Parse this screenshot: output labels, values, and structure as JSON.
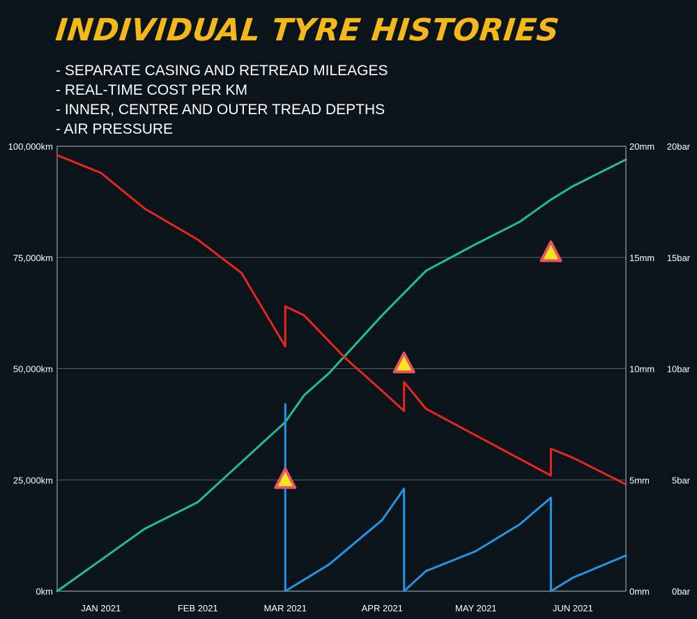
{
  "title": "INDIVIDUAL TYRE HISTORIES",
  "features": [
    "- SEPARATE CASING AND RETREAD MILEAGES",
    "- REAL-TIME COST PER KM",
    "- INNER, CENTRE AND OUTER TREAD DEPTHS",
    "- AIR PRESSURE"
  ],
  "colors": {
    "background": "#0b141b",
    "title": "#f5b81b",
    "casing_mileage": "#1fc08e",
    "retread_mileage": "#2196e6",
    "tread_depth": "#e8261c",
    "warning_fill": "#f7e619",
    "warning_stroke": "#e8536a"
  },
  "chart_data": {
    "type": "line",
    "x_ticks": [
      "JAN 2021",
      "FEB 2021",
      "MAR 2021",
      "APR 2021",
      "MAY 2021",
      "JUN 2021"
    ],
    "x_range": [
      "2020-12-18",
      "2021-06-18"
    ],
    "y_left": {
      "ticks": [
        "0km",
        "25,000km",
        "50,000km",
        "75,000km",
        "100,000km"
      ],
      "range": [
        0,
        100000
      ],
      "unit": "km"
    },
    "y_right_depth": {
      "ticks": [
        "0mm",
        "5mm",
        "10mm",
        "15mm",
        "20mm"
      ],
      "range": [
        0,
        20
      ],
      "unit": "mm"
    },
    "y_right_pressure": {
      "ticks": [
        "0bar",
        "5bar",
        "10bar",
        "15bar",
        "20bar"
      ],
      "range": [
        0,
        20
      ],
      "unit": "bar"
    },
    "grid": true,
    "series": [
      {
        "key": "casing_mileage",
        "axis": "left",
        "x": [
          "2020-12-18",
          "2021-01-01",
          "2021-01-15",
          "2021-02-01",
          "2021-02-15",
          "2021-03-01",
          "2021-03-07",
          "2021-03-15",
          "2021-04-01",
          "2021-04-15",
          "2021-05-01",
          "2021-05-15",
          "2021-05-25",
          "2021-06-01",
          "2021-06-18"
        ],
        "values": [
          0,
          7000,
          14000,
          20000,
          29000,
          38000,
          44000,
          49000,
          62000,
          72000,
          78000,
          83000,
          88000,
          91000,
          97000
        ]
      },
      {
        "key": "retread_mileage",
        "axis": "left",
        "x": [
          "2021-03-01",
          "2021-03-01",
          "2021-03-15",
          "2021-04-01",
          "2021-04-08",
          "2021-04-08",
          "2021-04-15",
          "2021-05-01",
          "2021-05-15",
          "2021-05-25",
          "2021-05-25",
          "2021-06-01",
          "2021-06-18"
        ],
        "values": [
          42000,
          0,
          6000,
          16000,
          23000,
          0,
          4500,
          9000,
          15000,
          21000,
          0,
          3000,
          8000
        ]
      },
      {
        "key": "tread_depth",
        "axis": "right_depth",
        "x": [
          "2020-12-18",
          "2021-01-01",
          "2021-01-15",
          "2021-02-01",
          "2021-02-15",
          "2021-03-01",
          "2021-03-01",
          "2021-03-07",
          "2021-03-20",
          "2021-04-01",
          "2021-04-08",
          "2021-04-08",
          "2021-04-15",
          "2021-05-01",
          "2021-05-25",
          "2021-05-25",
          "2021-06-01",
          "2021-06-18"
        ],
        "values": [
          19.6,
          18.8,
          17.2,
          15.8,
          14.3,
          11.0,
          12.8,
          12.4,
          10.5,
          9.0,
          8.1,
          9.4,
          8.2,
          7.0,
          5.2,
          6.4,
          6.0,
          4.8
        ]
      }
    ],
    "annotations": [
      {
        "type": "warning",
        "x": "2021-03-01",
        "y": 25000
      },
      {
        "type": "warning",
        "x": "2021-04-08",
        "y": 51000
      },
      {
        "type": "warning",
        "x": "2021-05-25",
        "y": 76000
      }
    ]
  }
}
